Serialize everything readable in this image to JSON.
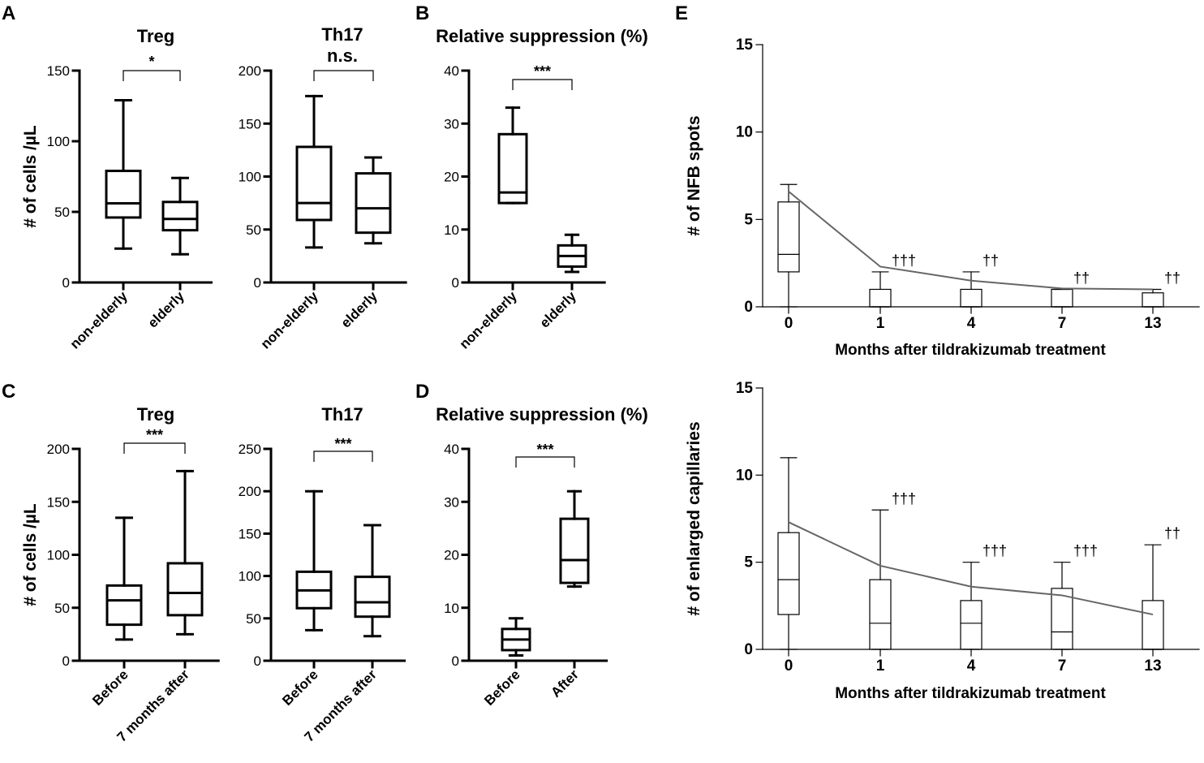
{
  "panel_labels": {
    "A": "A",
    "B": "B",
    "C": "C",
    "D": "D",
    "E": "E"
  },
  "chart_data": [
    {
      "id": "A1",
      "type": "box",
      "title": "Treg",
      "ylabel": "# of cells /µL",
      "ylim": [
        0,
        150
      ],
      "yticks": [
        "0",
        "50",
        "100",
        "150"
      ],
      "categories": [
        "non-elderly",
        "elderly"
      ],
      "boxes": [
        {
          "min": 24,
          "q1": 46,
          "median": 56,
          "q3": 79,
          "max": 129
        },
        {
          "min": 20,
          "q1": 37,
          "median": 45,
          "q3": 57,
          "max": 74
        }
      ],
      "significance": "*"
    },
    {
      "id": "A2",
      "type": "box",
      "title": "Th17",
      "subtitle": "n.s.",
      "ylim": [
        0,
        200
      ],
      "yticks": [
        "0",
        "50",
        "100",
        "150",
        "200"
      ],
      "categories": [
        "non-elderly",
        "elderly"
      ],
      "boxes": [
        {
          "min": 33,
          "q1": 59,
          "median": 75,
          "q3": 128,
          "max": 176
        },
        {
          "min": 37,
          "q1": 47,
          "median": 70,
          "q3": 103,
          "max": 118
        }
      ]
    },
    {
      "id": "B",
      "type": "box",
      "title": "Relative suppression (%)",
      "ylim": [
        0,
        40
      ],
      "yticks": [
        "0",
        "10",
        "20",
        "30",
        "40"
      ],
      "categories": [
        "non-elderly",
        "elderly"
      ],
      "boxes": [
        {
          "min": 15,
          "q1": 15,
          "median": 17,
          "q3": 28,
          "max": 33
        },
        {
          "min": 2,
          "q1": 3,
          "median": 5,
          "q3": 7,
          "max": 9
        }
      ],
      "significance": "***"
    },
    {
      "id": "C1",
      "type": "box",
      "title": "Treg",
      "ylabel": "# of cells /µL",
      "ylim": [
        0,
        200
      ],
      "yticks": [
        "0",
        "50",
        "100",
        "150",
        "200"
      ],
      "categories": [
        "Before",
        "7 months after"
      ],
      "boxes": [
        {
          "min": 20,
          "q1": 34,
          "median": 57,
          "q3": 71,
          "max": 135
        },
        {
          "min": 25,
          "q1": 43,
          "median": 64,
          "q3": 92,
          "max": 179
        }
      ],
      "significance": "***"
    },
    {
      "id": "C2",
      "type": "box",
      "title": "Th17",
      "ylim": [
        0,
        250
      ],
      "yticks": [
        "0",
        "50",
        "100",
        "150",
        "200",
        "250"
      ],
      "categories": [
        "Before",
        "7 months after"
      ],
      "boxes": [
        {
          "min": 36,
          "q1": 62,
          "median": 83,
          "q3": 105,
          "max": 200
        },
        {
          "min": 29,
          "q1": 52,
          "median": 69,
          "q3": 99,
          "max": 160
        }
      ],
      "significance": "***"
    },
    {
      "id": "D",
      "type": "box",
      "title": "Relative suppression (%)",
      "ylim": [
        0,
        40
      ],
      "yticks": [
        "0",
        "10",
        "20",
        "30",
        "40"
      ],
      "categories": [
        "Before",
        "After"
      ],
      "boxes": [
        {
          "min": 1,
          "q1": 2,
          "median": 4,
          "q3": 6,
          "max": 8
        },
        {
          "min": 14,
          "q1": 14.7,
          "median": 19,
          "q3": 26.8,
          "max": 32
        }
      ],
      "significance": "***"
    },
    {
      "id": "E1",
      "type": "box",
      "ylabel": "# of NFB spots",
      "xlabel": "Months after tildrakizumab treatment",
      "ylim": [
        0,
        15
      ],
      "yticks": [
        "0",
        "5",
        "10",
        "15"
      ],
      "categories": [
        "0",
        "1",
        "4",
        "7",
        "13"
      ],
      "boxes": [
        {
          "min": 0,
          "q1": 2,
          "median": 3,
          "q3": 6,
          "max": 7
        },
        {
          "min": 0,
          "q1": 0,
          "median": 0,
          "q3": 1,
          "max": 2
        },
        {
          "min": 0,
          "q1": 0,
          "median": 0,
          "q3": 1,
          "max": 2
        },
        {
          "min": 0,
          "q1": 0,
          "median": 0,
          "q3": 1,
          "max": 1
        },
        {
          "min": 0,
          "q1": 0,
          "median": 0,
          "q3": 0.8,
          "max": 1
        }
      ],
      "mean_line": [
        6.6,
        2.3,
        1.5,
        1.05,
        1.0
      ],
      "annotations": [
        "",
        "†††",
        "††",
        "††",
        "††"
      ]
    },
    {
      "id": "E2",
      "type": "box",
      "ylabel": "# of enlarged capillaries",
      "xlabel": "Months after tildrakizumab treatment",
      "ylim": [
        0,
        15
      ],
      "yticks": [
        "0",
        "5",
        "10",
        "15"
      ],
      "categories": [
        "0",
        "1",
        "4",
        "7",
        "13"
      ],
      "boxes": [
        {
          "min": 0,
          "q1": 2,
          "median": 4,
          "q3": 6.7,
          "max": 11
        },
        {
          "min": 0,
          "q1": 0,
          "median": 1.5,
          "q3": 4,
          "max": 8
        },
        {
          "min": 0,
          "q1": 0,
          "median": 1.5,
          "q3": 2.8,
          "max": 5
        },
        {
          "min": 0,
          "q1": 0,
          "median": 1,
          "q3": 3.5,
          "max": 5
        },
        {
          "min": 0,
          "q1": 0,
          "median": 0,
          "q3": 2.8,
          "max": 6
        }
      ],
      "mean_line": [
        7.3,
        4.8,
        3.6,
        3.1,
        2.0
      ],
      "annotations": [
        "",
        "†††",
        "†††",
        "†††",
        "††"
      ]
    }
  ]
}
